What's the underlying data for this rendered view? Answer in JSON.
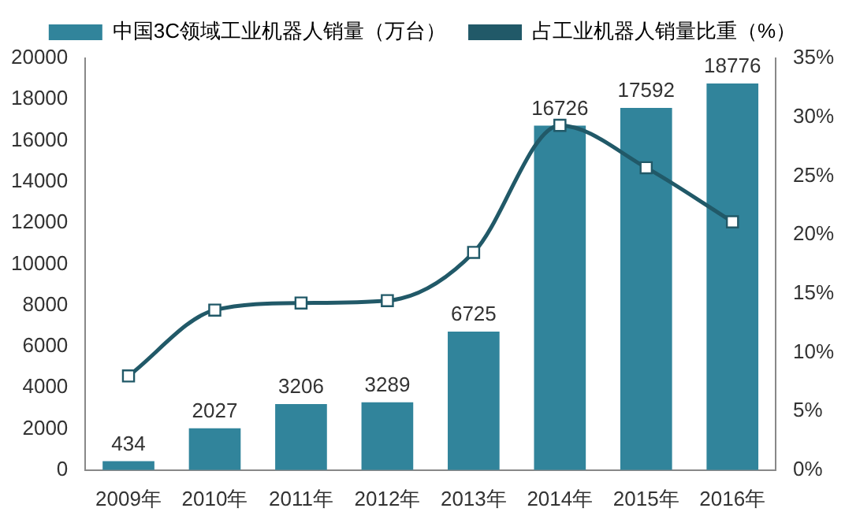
{
  "chart_data": {
    "type": "bar",
    "categories": [
      "2009年",
      "2010年",
      "2011年",
      "2012年",
      "2013年",
      "2014年",
      "2015年",
      "2016年"
    ],
    "series": [
      {
        "name": "中国3C领域工业机器人销量（万台）",
        "color": "#31849b",
        "values": [
          434,
          2027,
          3206,
          3289,
          6725,
          16726,
          17592,
          18776
        ],
        "value_labels": [
          "434",
          "2027",
          "3206",
          "3289",
          "6725",
          "16726",
          "17592",
          "18776"
        ]
      },
      {
        "name": "占工业机器人销量比重（%）",
        "type": "line",
        "axis": "y2",
        "color": "#215968",
        "marker": "square",
        "values": [
          8.0,
          13.6,
          14.2,
          14.4,
          18.5,
          29.3,
          25.7,
          21.1
        ]
      }
    ],
    "ylim": [
      0,
      20000
    ],
    "yticks": [
      0,
      2000,
      4000,
      6000,
      8000,
      10000,
      12000,
      14000,
      16000,
      18000,
      20000
    ],
    "y2lim": [
      0,
      35
    ],
    "y2ticks": [
      {
        "value": 0,
        "label": "0%"
      },
      {
        "value": 5,
        "label": "5%"
      },
      {
        "value": 10,
        "label": "10%"
      },
      {
        "value": 15,
        "label": "15%"
      },
      {
        "value": 20,
        "label": "20%"
      },
      {
        "value": 25,
        "label": "25%"
      },
      {
        "value": 30,
        "label": "30%"
      },
      {
        "value": 35,
        "label": "35%"
      }
    ],
    "grid": false,
    "legend": "top"
  }
}
